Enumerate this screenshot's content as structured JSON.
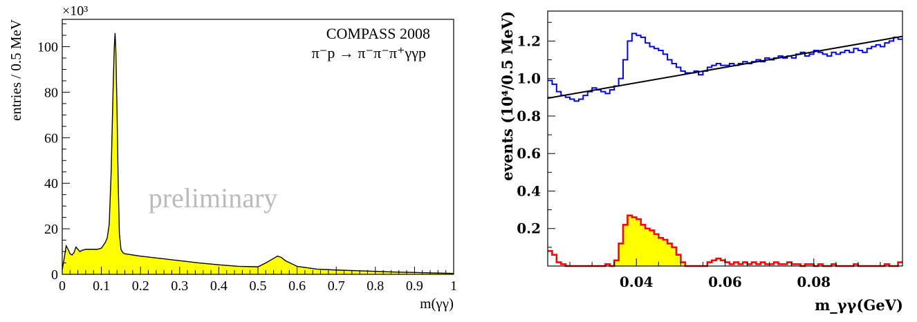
{
  "chart_data": [
    {
      "type": "area",
      "title": "",
      "xlabel": "m(γγ)",
      "ylabel": "entries / 0.5 MeV",
      "xlim": [
        0,
        1
      ],
      "ylim": [
        0,
        112
      ],
      "y_multiplier": "×10³",
      "grid": false,
      "x_ticks": [
        0,
        0.1,
        0.2,
        0.3,
        0.4,
        0.5,
        0.6,
        0.7,
        0.8,
        0.9,
        1
      ],
      "x_tick_labels": [
        "0",
        "0.1",
        "0.2",
        "0.3",
        "0.4",
        "0.5",
        "0.6",
        "0.7",
        "0.8",
        "0.9",
        "1"
      ],
      "y_ticks": [
        0,
        20,
        40,
        60,
        80,
        100
      ],
      "y_tick_labels": [
        "0",
        "20",
        "40",
        "60",
        "80",
        "100"
      ],
      "annotations": [
        "COMPASS 2008",
        "π⁻p → π⁻π⁻π⁺γγp",
        "preliminary"
      ],
      "fill_color": "#ffff00",
      "line_color": "#000000",
      "series": [
        {
          "x": [
            0.0,
            0.005,
            0.01,
            0.015,
            0.02,
            0.025,
            0.03,
            0.035,
            0.04,
            0.045,
            0.05,
            0.06,
            0.07,
            0.08,
            0.09,
            0.1,
            0.11,
            0.115,
            0.12,
            0.125,
            0.13,
            0.133,
            0.135,
            0.137,
            0.14,
            0.143,
            0.146,
            0.15,
            0.155,
            0.16,
            0.17,
            0.18,
            0.2,
            0.25,
            0.3,
            0.35,
            0.4,
            0.45,
            0.5,
            0.52,
            0.54,
            0.55,
            0.56,
            0.57,
            0.6,
            0.65,
            0.7,
            0.75,
            0.8,
            0.85,
            0.9,
            0.95,
            1.0
          ],
          "values": [
            2,
            7,
            12.5,
            11,
            9,
            8.5,
            9.5,
            12,
            11,
            10,
            10.5,
            11,
            11,
            11,
            11,
            11.5,
            14,
            16,
            22,
            45,
            82,
            100,
            106,
            98,
            72,
            40,
            18,
            11,
            9.5,
            9,
            8.8,
            8.5,
            8,
            7,
            6,
            5,
            4.2,
            3.5,
            3.3,
            5,
            7,
            8,
            7.4,
            6,
            3.5,
            2.3,
            1.9,
            1.6,
            1.3,
            1.0,
            0.8,
            0.6,
            0.4
          ]
        }
      ]
    },
    {
      "type": "line",
      "title": "",
      "xlabel": "m_γγ(GeV)",
      "ylabel": "events (10⁴/0.5 MeV)",
      "xlim": [
        0.02,
        0.1
      ],
      "ylim": [
        0,
        1.36
      ],
      "grid": false,
      "x_ticks": [
        0.04,
        0.06,
        0.08
      ],
      "x_tick_labels": [
        "0.04",
        "0.06",
        "0.08"
      ],
      "y_ticks": [
        0.2,
        0.4,
        0.6,
        0.8,
        1.0,
        1.2
      ],
      "y_tick_labels": [
        "0.2",
        "0.4",
        "0.6",
        "0.8",
        "1.0",
        "1.2"
      ],
      "series": [
        {
          "style": "histogram",
          "color": "#0000ff",
          "x": [
            0.02,
            0.021,
            0.022,
            0.023,
            0.024,
            0.025,
            0.026,
            0.027,
            0.028,
            0.029,
            0.03,
            0.031,
            0.032,
            0.033,
            0.034,
            0.035,
            0.036,
            0.037,
            0.038,
            0.039,
            0.04,
            0.041,
            0.042,
            0.043,
            0.044,
            0.045,
            0.046,
            0.047,
            0.048,
            0.049,
            0.05,
            0.051,
            0.052,
            0.053,
            0.054,
            0.055,
            0.056,
            0.057,
            0.058,
            0.059,
            0.06,
            0.061,
            0.062,
            0.063,
            0.064,
            0.065,
            0.066,
            0.067,
            0.068,
            0.069,
            0.07,
            0.071,
            0.072,
            0.073,
            0.074,
            0.075,
            0.076,
            0.077,
            0.078,
            0.079,
            0.08,
            0.081,
            0.082,
            0.083,
            0.084,
            0.085,
            0.086,
            0.087,
            0.088,
            0.089,
            0.09,
            0.091,
            0.092,
            0.093,
            0.094,
            0.095,
            0.096,
            0.097,
            0.098,
            0.099
          ],
          "values": [
            0.99,
            0.97,
            0.93,
            0.91,
            0.9,
            0.89,
            0.88,
            0.89,
            0.91,
            0.93,
            0.95,
            0.94,
            0.93,
            0.92,
            0.94,
            0.96,
            1.0,
            1.1,
            1.2,
            1.24,
            1.23,
            1.22,
            1.19,
            1.17,
            1.16,
            1.15,
            1.13,
            1.1,
            1.08,
            1.06,
            1.04,
            1.03,
            1.03,
            1.04,
            1.02,
            1.04,
            1.06,
            1.07,
            1.08,
            1.07,
            1.07,
            1.08,
            1.07,
            1.08,
            1.09,
            1.08,
            1.09,
            1.1,
            1.09,
            1.11,
            1.1,
            1.11,
            1.12,
            1.11,
            1.12,
            1.11,
            1.13,
            1.14,
            1.12,
            1.13,
            1.15,
            1.14,
            1.13,
            1.12,
            1.14,
            1.13,
            1.14,
            1.15,
            1.14,
            1.16,
            1.15,
            1.14,
            1.16,
            1.17,
            1.18,
            1.17,
            1.19,
            1.2,
            1.22,
            1.21
          ]
        },
        {
          "style": "straight-line",
          "color": "#000000",
          "x": [
            0.02,
            0.1
          ],
          "values": [
            0.895,
            1.225
          ]
        },
        {
          "style": "histogram-filled",
          "color": "#ff0000",
          "fill_color": "#ffff00",
          "x": [
            0.02,
            0.021,
            0.022,
            0.023,
            0.024,
            0.025,
            0.026,
            0.027,
            0.028,
            0.029,
            0.03,
            0.031,
            0.032,
            0.033,
            0.034,
            0.035,
            0.036,
            0.037,
            0.038,
            0.039,
            0.04,
            0.041,
            0.042,
            0.043,
            0.044,
            0.045,
            0.046,
            0.047,
            0.048,
            0.049,
            0.05,
            0.051,
            0.052,
            0.053,
            0.054,
            0.055,
            0.056,
            0.057,
            0.058,
            0.059,
            0.06,
            0.061,
            0.062,
            0.063,
            0.064,
            0.065,
            0.066,
            0.067,
            0.068,
            0.069,
            0.07,
            0.071,
            0.072,
            0.073,
            0.074,
            0.075,
            0.076,
            0.077,
            0.078,
            0.079,
            0.08,
            0.081,
            0.082,
            0.083,
            0.084,
            0.085,
            0.086,
            0.087,
            0.088,
            0.089,
            0.09,
            0.091,
            0.092,
            0.093,
            0.094,
            0.095,
            0.096,
            0.097,
            0.098,
            0.099
          ],
          "values": [
            0.08,
            0.06,
            0.02,
            0.01,
            0.0,
            0.0,
            0.0,
            0.0,
            0.0,
            0.0,
            0.0,
            0.0,
            0.0,
            0.01,
            0.0,
            0.03,
            0.12,
            0.22,
            0.27,
            0.26,
            0.25,
            0.22,
            0.2,
            0.19,
            0.17,
            0.15,
            0.14,
            0.12,
            0.1,
            0.06,
            0.02,
            0.0,
            0.0,
            0.0,
            0.0,
            0.0,
            0.02,
            0.03,
            0.04,
            0.03,
            0.02,
            0.01,
            0.02,
            0.01,
            0.02,
            0.01,
            0.02,
            0.01,
            0.02,
            0.01,
            0.01,
            0.02,
            0.01,
            0.01,
            0.02,
            0.01,
            0.01,
            0.0,
            0.01,
            0.01,
            0.0,
            0.01,
            0.0,
            0.0,
            0.01,
            0.0,
            0.0,
            0.0,
            0.0,
            0.01,
            0.0,
            0.0,
            0.0,
            0.0,
            0.0,
            0.0,
            0.01,
            0.0,
            0.0,
            0.02
          ]
        }
      ]
    }
  ]
}
